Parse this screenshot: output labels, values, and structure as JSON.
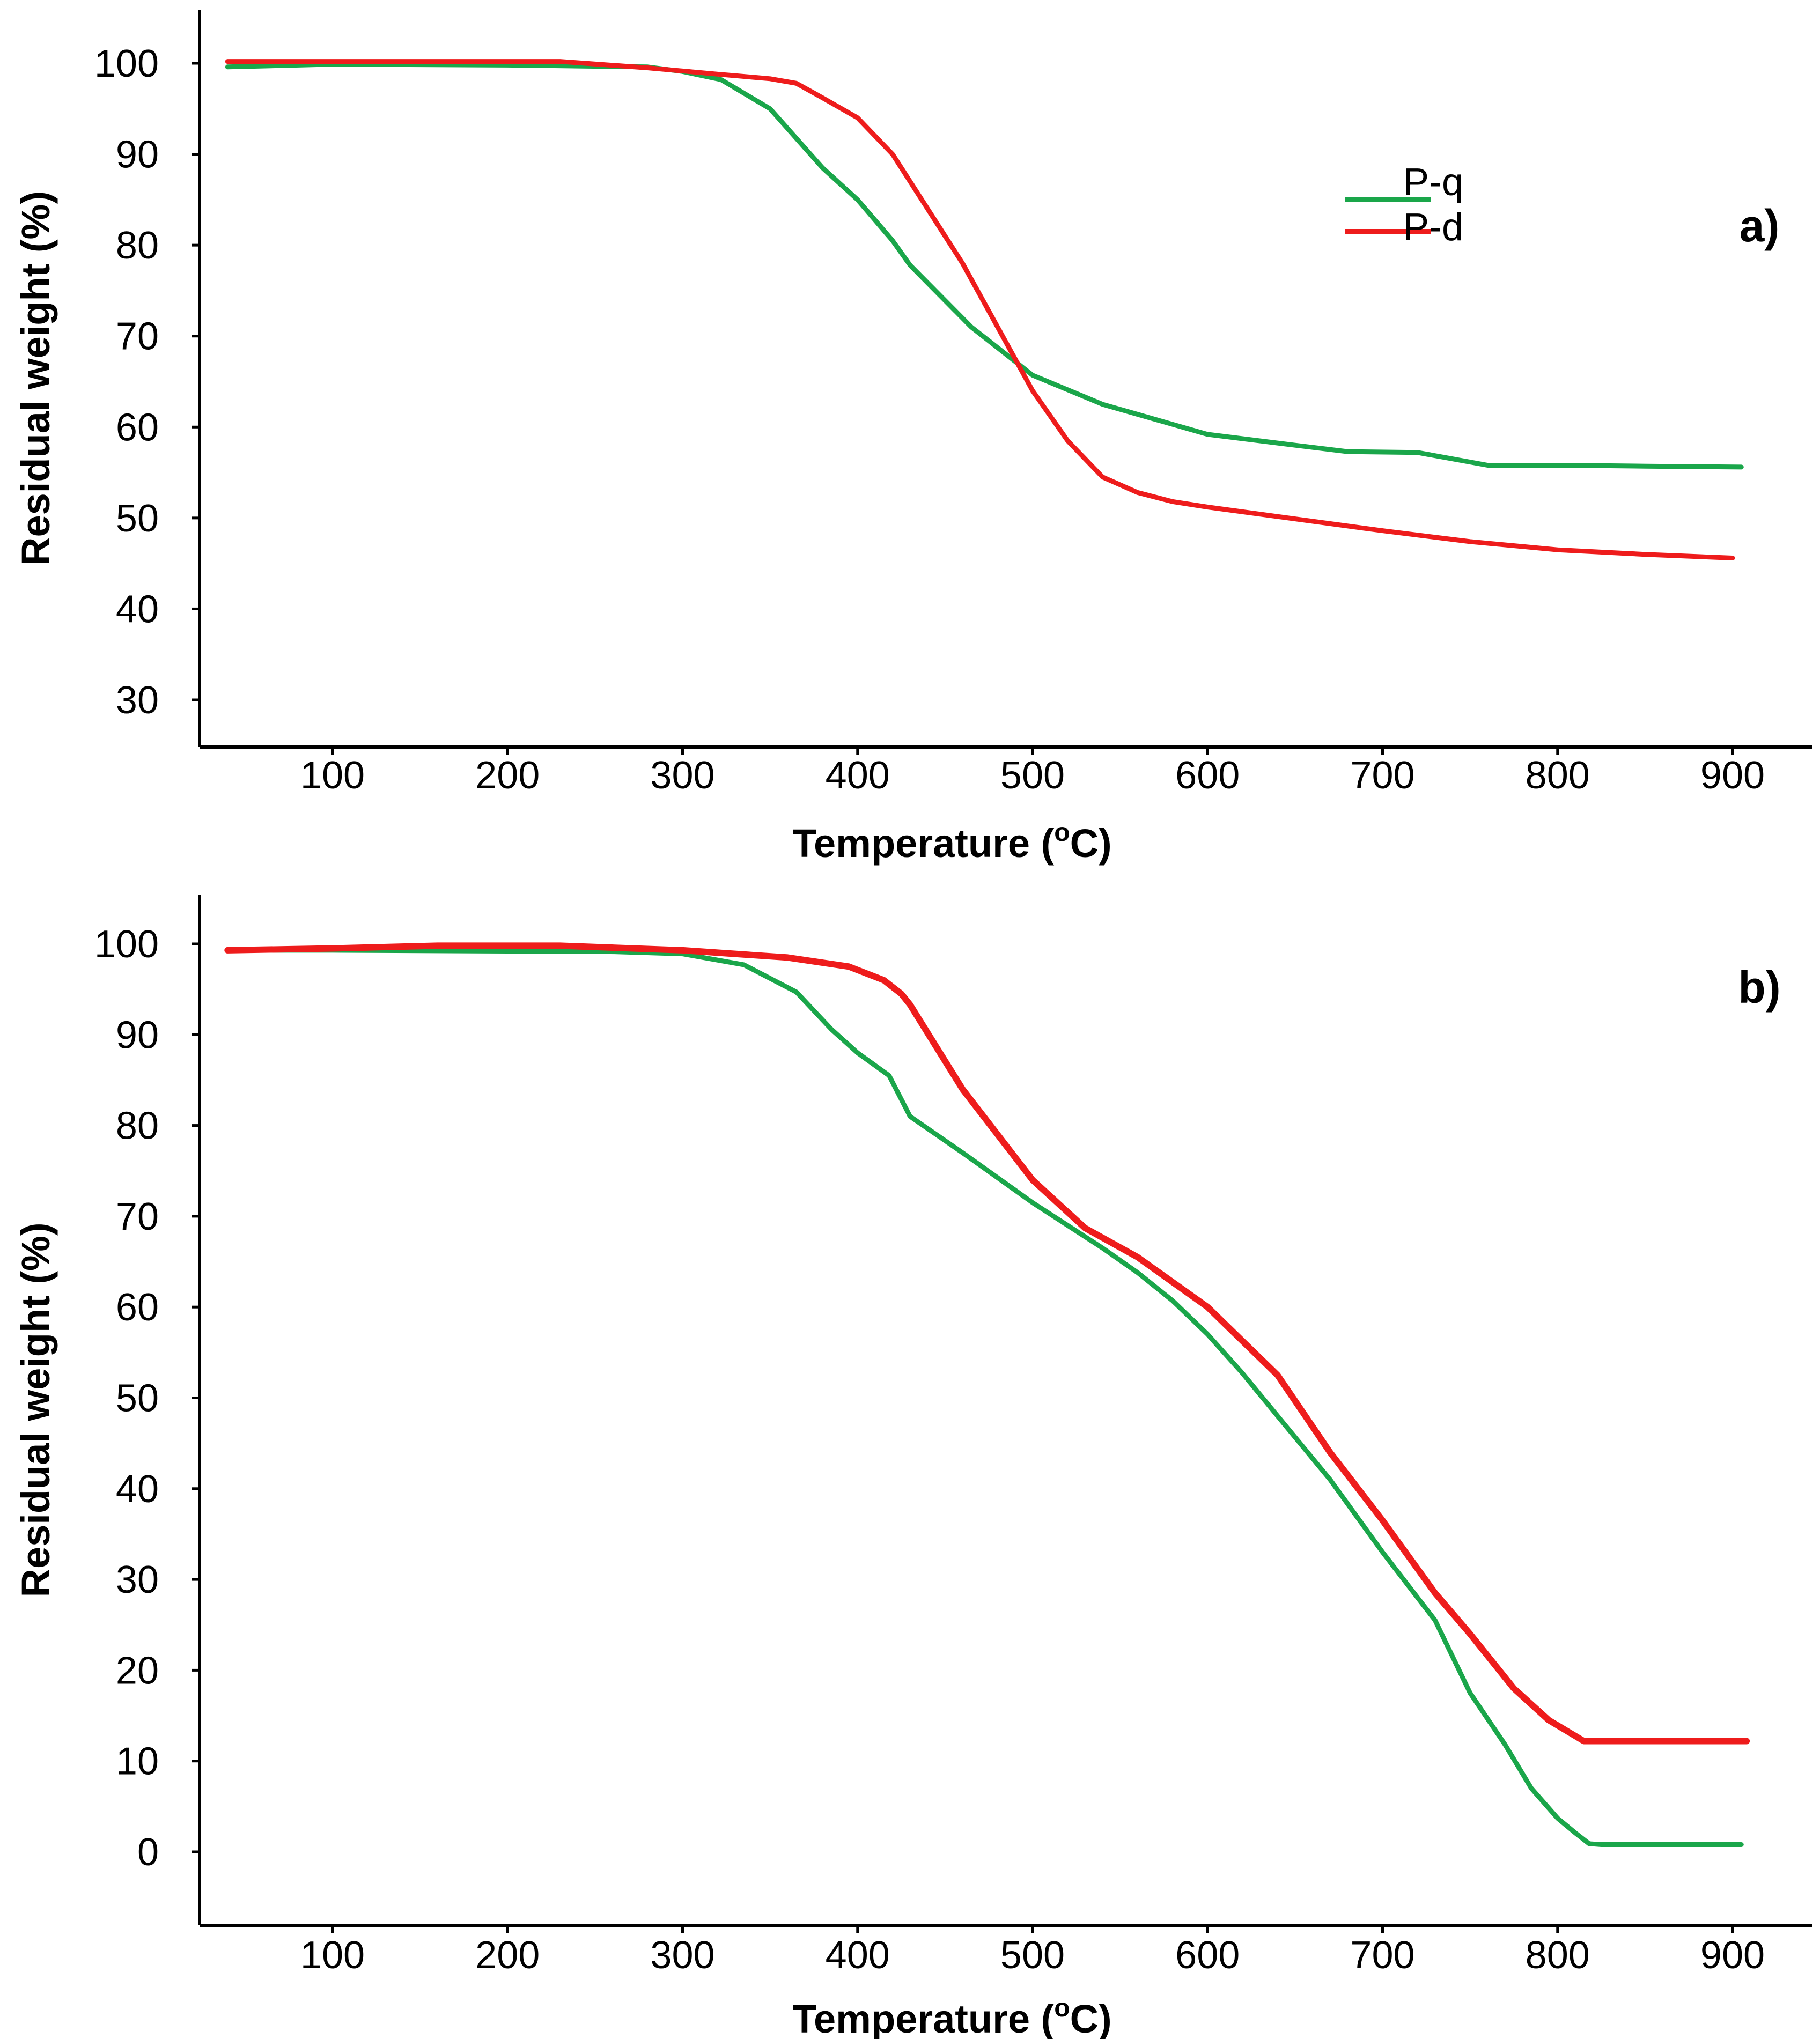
{
  "series_colors": {
    "P-q": "#1aa64a",
    "P-d": "#ee1c1c"
  },
  "chart_data": [
    {
      "type": "line",
      "panel_label": "a)",
      "xlabel": "Temperature (",
      "xlabel_sup": "o",
      "xlabel_end": "C)",
      "ylabel": "Residual weight (%)",
      "xlim": [
        30,
        920
      ],
      "ylim": [
        25,
        105
      ],
      "xticks": [
        100,
        200,
        300,
        400,
        500,
        600,
        700,
        800,
        900
      ],
      "yticks": [
        30,
        40,
        50,
        60,
        70,
        80,
        90,
        100
      ],
      "legend": {
        "placement": "top-right",
        "entries": [
          "P-q",
          "P-d"
        ]
      },
      "series": [
        {
          "name": "P-q",
          "x": [
            40,
            100,
            200,
            280,
            300,
            322,
            350,
            380,
            400,
            420,
            430,
            465,
            500,
            540,
            600,
            650,
            680,
            720,
            760,
            800,
            850,
            905
          ],
          "y": [
            99.6,
            99.9,
            99.8,
            99.6,
            99.1,
            98.2,
            95.0,
            88.5,
            85.0,
            80.5,
            77.8,
            71.0,
            65.7,
            62.5,
            59.2,
            58.0,
            57.3,
            57.2,
            55.8,
            55.8,
            55.7,
            55.6
          ]
        },
        {
          "name": "P-d",
          "x": [
            40,
            100,
            200,
            230,
            280,
            320,
            350,
            365,
            380,
            400,
            420,
            440,
            460,
            480,
            500,
            520,
            540,
            560,
            580,
            600,
            650,
            700,
            750,
            800,
            850,
            900
          ],
          "y": [
            100.2,
            100.2,
            100.2,
            100.2,
            99.5,
            98.8,
            98.3,
            97.8,
            96.2,
            94.0,
            90.0,
            84.0,
            78.0,
            71.0,
            64.0,
            58.5,
            54.5,
            52.8,
            51.8,
            51.2,
            49.9,
            48.6,
            47.4,
            46.5,
            46.0,
            45.6
          ]
        }
      ]
    },
    {
      "type": "line",
      "panel_label": "b)",
      "xlabel": "Temperature (",
      "xlabel_sup": "o",
      "xlabel_end": "C)",
      "ylabel": "Residual weight (%)",
      "xlim": [
        30,
        920
      ],
      "ylim": [
        -8,
        106
      ],
      "xticks": [
        100,
        200,
        300,
        400,
        500,
        600,
        700,
        800,
        900
      ],
      "yticks": [
        0,
        10,
        20,
        30,
        40,
        50,
        60,
        70,
        80,
        90,
        100
      ],
      "series": [
        {
          "name": "P-q",
          "x": [
            40,
            100,
            200,
            250,
            300,
            335,
            365,
            385,
            400,
            418,
            430,
            460,
            500,
            540,
            560,
            580,
            600,
            620,
            640,
            670,
            700,
            730,
            750,
            770,
            785,
            800,
            810,
            818,
            825,
            850,
            900,
            905
          ],
          "y": [
            99.3,
            99.3,
            99.2,
            99.2,
            98.9,
            97.7,
            94.7,
            90.6,
            88.0,
            85.5,
            81.0,
            77.0,
            71.5,
            66.5,
            63.8,
            60.7,
            57.0,
            52.7,
            48.0,
            41.0,
            33.0,
            25.5,
            17.5,
            11.8,
            7.0,
            3.7,
            2.1,
            0.9,
            0.8,
            0.8,
            0.8,
            0.8
          ]
        },
        {
          "name": "P-d",
          "x": [
            40,
            100,
            160,
            230,
            300,
            360,
            395,
            415,
            425,
            430,
            460,
            500,
            530,
            560,
            600,
            640,
            670,
            700,
            730,
            750,
            775,
            795,
            815,
            850,
            908
          ],
          "y": [
            99.3,
            99.5,
            99.8,
            99.8,
            99.3,
            98.5,
            97.5,
            96.0,
            94.5,
            93.3,
            84.0,
            74.0,
            68.7,
            65.5,
            60.0,
            52.5,
            44.0,
            36.5,
            28.5,
            24.0,
            18.0,
            14.5,
            12.2,
            12.2,
            12.2
          ]
        }
      ]
    }
  ]
}
